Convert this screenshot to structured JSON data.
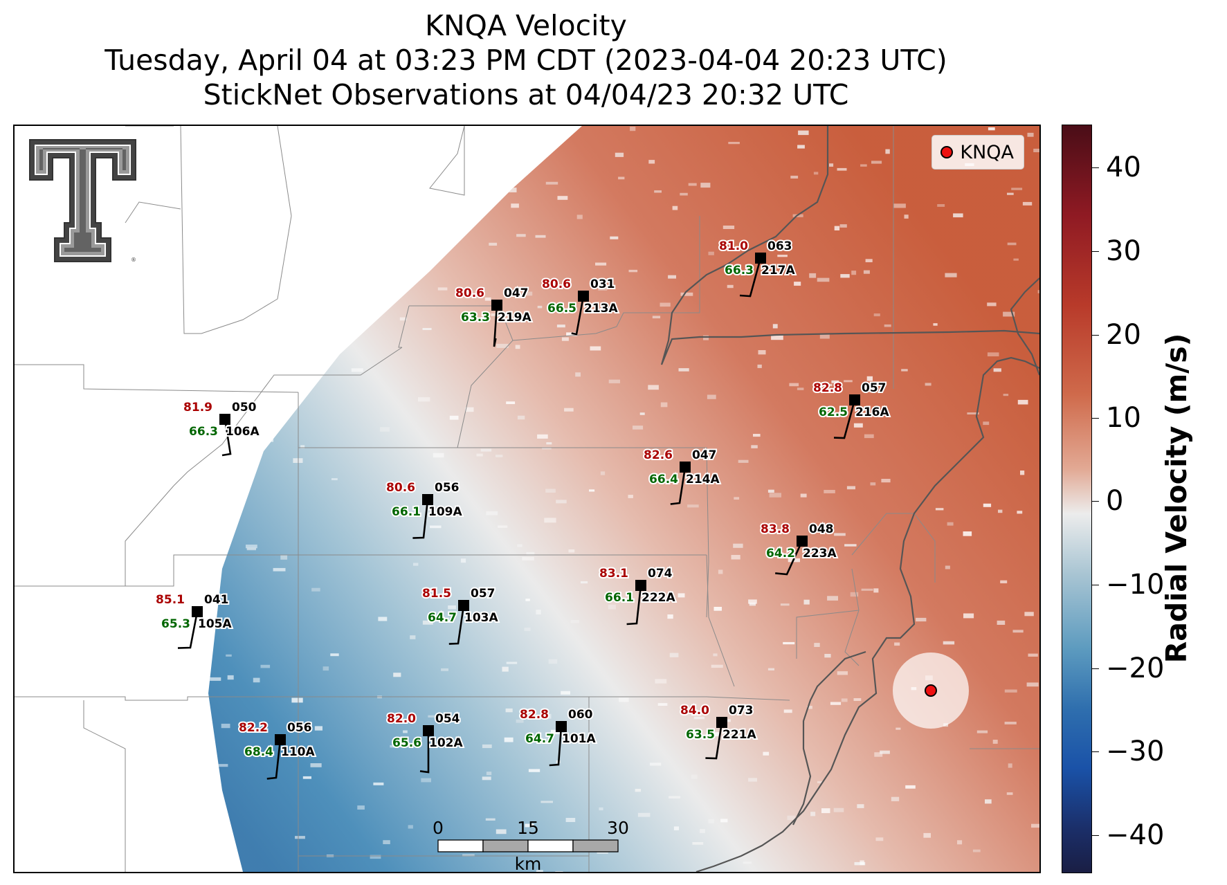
{
  "title": {
    "line1": "KNQA Velocity",
    "line2": "Tuesday, April 04 at 03:23 PM CDT (2023-04-04 20:23 UTC)",
    "line3": "StickNet Observations at 04/04/23 20:32 UTC"
  },
  "legend": {
    "label": "KNQA"
  },
  "colorbar": {
    "label": "Radial Velocity (m/s)",
    "ticks": [
      "40",
      "30",
      "20",
      "10",
      "0",
      "−10",
      "−20",
      "−30",
      "−40"
    ],
    "colors": {
      "max": "#4a0d17",
      "zero": "#ececec",
      "min": "#1a1e44"
    }
  },
  "scale_bar": {
    "ticks": [
      "0",
      "15",
      "30"
    ],
    "unit": "km"
  },
  "logo": {
    "name": "texas-tech-double-t"
  },
  "stations": [
    {
      "temp": "81.0",
      "dew": "66.3",
      "pres": "063",
      "id": "217A"
    },
    {
      "temp": "80.6",
      "dew": "63.3",
      "pres": "047",
      "id": "219A"
    },
    {
      "temp": "80.6",
      "dew": "66.5",
      "pres": "031",
      "id": "213A"
    },
    {
      "temp": "82.8",
      "dew": "62.5",
      "pres": "057",
      "id": "216A"
    },
    {
      "temp": "81.9",
      "dew": "66.3",
      "pres": "050",
      "id": "106A"
    },
    {
      "temp": "82.6",
      "dew": "66.4",
      "pres": "047",
      "id": "214A"
    },
    {
      "temp": "80.6",
      "dew": "66.1",
      "pres": "056",
      "id": "109A"
    },
    {
      "temp": "83.8",
      "dew": "64.2",
      "pres": "048",
      "id": "223A"
    },
    {
      "temp": "83.1",
      "dew": "66.1",
      "pres": "074",
      "id": "222A"
    },
    {
      "temp": "85.1",
      "dew": "65.3",
      "pres": "041",
      "id": "105A"
    },
    {
      "temp": "81.5",
      "dew": "64.7",
      "pres": "057",
      "id": "103A"
    },
    {
      "temp": "84.0",
      "dew": "63.5",
      "pres": "073",
      "id": "221A"
    },
    {
      "temp": "82.2",
      "dew": "68.4",
      "pres": "056",
      "id": "110A"
    },
    {
      "temp": "82.0",
      "dew": "65.6",
      "pres": "054",
      "id": "102A"
    },
    {
      "temp": "82.8",
      "dew": "64.7",
      "pres": "060",
      "id": "101A"
    }
  ]
}
